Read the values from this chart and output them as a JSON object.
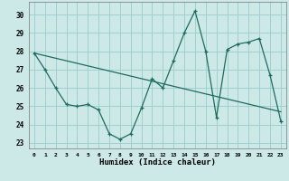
{
  "xlabel": "Humidex (Indice chaleur)",
  "xlim": [
    -0.5,
    23.5
  ],
  "ylim": [
    22.7,
    30.7
  ],
  "yticks": [
    23,
    24,
    25,
    26,
    27,
    28,
    29,
    30
  ],
  "xticks": [
    0,
    1,
    2,
    3,
    4,
    5,
    6,
    7,
    8,
    9,
    10,
    11,
    12,
    13,
    14,
    15,
    16,
    17,
    18,
    19,
    20,
    21,
    22,
    23
  ],
  "bg_color": "#cce9e8",
  "grid_color": "#a0d0ce",
  "line_color": "#1e6b5e",
  "series1_x": [
    0,
    1,
    2,
    3,
    4,
    5,
    6,
    7,
    8,
    9,
    10,
    11,
    12,
    13,
    14,
    15,
    16,
    17,
    18,
    19,
    20,
    21,
    22,
    23
  ],
  "series1_y": [
    27.9,
    27.0,
    26.0,
    25.1,
    25.0,
    25.1,
    24.8,
    23.5,
    23.2,
    23.5,
    24.9,
    26.5,
    26.0,
    27.5,
    29.0,
    30.2,
    28.0,
    24.4,
    28.1,
    28.4,
    28.5,
    28.7,
    26.7,
    24.2
  ],
  "series2_x": [
    0,
    23
  ],
  "series2_y": [
    27.9,
    24.7
  ]
}
